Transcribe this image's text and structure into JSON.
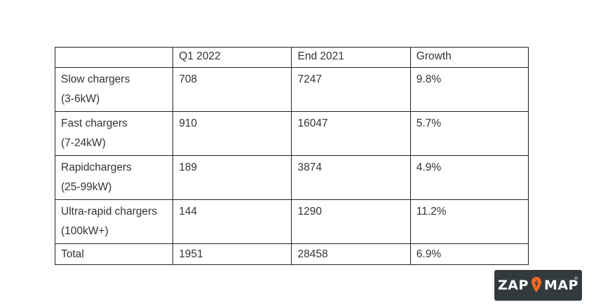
{
  "page_mark": "· · ·",
  "table": {
    "headers": [
      "",
      "Q1 2022",
      "End 2021",
      "Growth"
    ],
    "rows": [
      {
        "category_line1": "Slow chargers",
        "category_line2": "(3-6kW)",
        "q1_2022": "708",
        "end_2021": "7247",
        "growth": "9.8%"
      },
      {
        "category_line1": "Fast chargers",
        "category_line2": "(7-24kW)",
        "q1_2022": "910",
        "end_2021": "16047",
        "growth": "5.7%"
      },
      {
        "category_line1": "Rapidchargers",
        "category_line2": "(25-99kW)",
        "q1_2022": "189",
        "end_2021": "3874",
        "growth": "4.9%"
      },
      {
        "category_line1": "Ultra-rapid chargers",
        "category_line2": "(100kW+)",
        "q1_2022": "144",
        "end_2021": "1290",
        "growth": "11.2%"
      },
      {
        "category_line1": "Total",
        "category_line2": "",
        "q1_2022": "1951",
        "end_2021": "28458",
        "growth": "6.9%"
      }
    ]
  },
  "logo": {
    "word_left": "ZAP",
    "word_right": "MAP",
    "registered": "®",
    "icon": "lightning-pin-icon",
    "background_color": "#333a3e",
    "accent_color": "#f26a21"
  }
}
